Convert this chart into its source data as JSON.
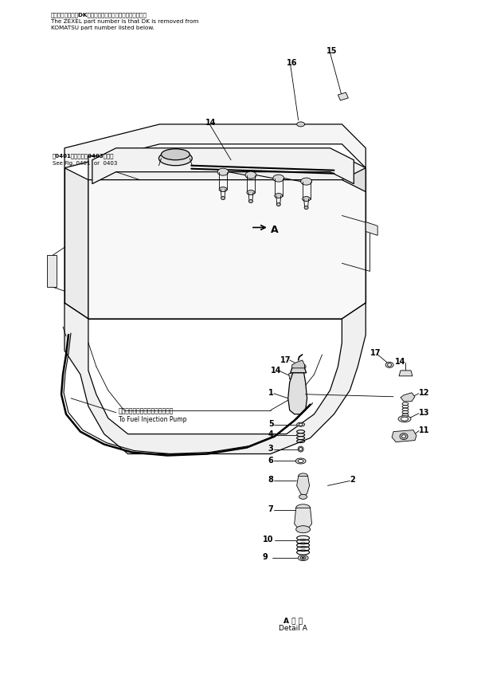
{
  "bg_color": "#ffffff",
  "title_text_jp": "品番のメーカ記号DKを拁いたものがゼクセルの品番です。",
  "title_text_en1": "The ZEXEL part number is that DK is removed from",
  "title_text_en2": "KOMATSU part number listed below.",
  "note_jp": "困0401図または困0403図参照",
  "note_en": "See Fig. 0401  or  0403",
  "pump_label_jp": "フェルインジェクションポンプへ",
  "pump_label_en": "To Fuel Injection Pump",
  "detail_label_line1": "A 詳 細",
  "detail_label_line2": "Detail A",
  "fig_size": [
    5.99,
    8.47
  ],
  "dpi": 100
}
